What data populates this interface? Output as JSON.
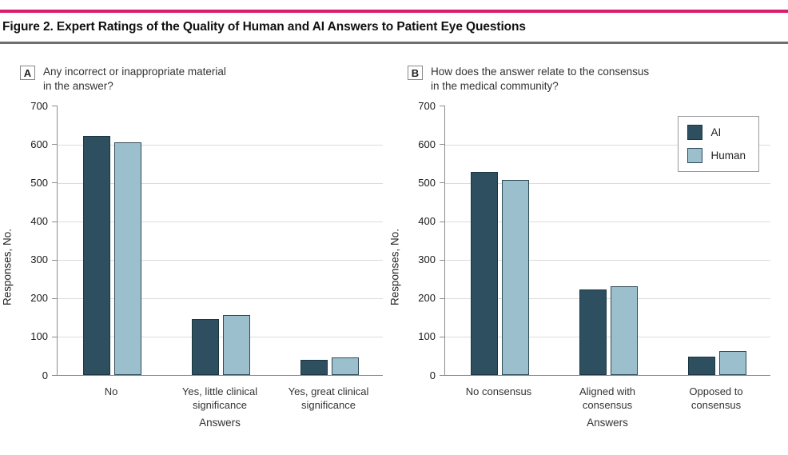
{
  "figure": {
    "title": "Figure 2. Expert Ratings of the Quality of Human and AI Answers to Patient Eye Questions",
    "accent_rule_color": "#d91c6b",
    "divider_rule_color": "#6f6f6f"
  },
  "legend": {
    "position": "panel-B-top-right",
    "items": [
      {
        "label": "AI",
        "color": "#2d4f5f",
        "border": "#1c3641"
      },
      {
        "label": "Human",
        "color": "#9cbfce",
        "border": "#2f4a57"
      }
    ]
  },
  "chart_data": [
    {
      "type": "bar",
      "panel": "A",
      "question_lines": [
        "Any incorrect or inappropriate material",
        "in the answer?"
      ],
      "categories": [
        [
          "No"
        ],
        [
          "Yes, little clinical",
          "significance"
        ],
        [
          "Yes, great clinical",
          "significance"
        ]
      ],
      "series": [
        {
          "name": "AI",
          "color": "#2d4f5f",
          "border": "#1c3641",
          "values": [
            620,
            145,
            38
          ]
        },
        {
          "name": "Human",
          "color": "#9cbfce",
          "border": "#2f4a57",
          "values": [
            603,
            155,
            44
          ]
        }
      ],
      "xlabel": "Answers",
      "ylabel": "Responses, No.",
      "ylim": [
        0,
        700
      ],
      "yticks": [
        0,
        100,
        200,
        300,
        400,
        500,
        600,
        700
      ],
      "grid": true,
      "legend": false
    },
    {
      "type": "bar",
      "panel": "B",
      "question_lines": [
        "How does the answer relate to the consensus",
        "in the medical community?"
      ],
      "categories": [
        [
          "No consensus"
        ],
        [
          "Aligned with",
          "consensus"
        ],
        [
          "Opposed to",
          "consensus"
        ]
      ],
      "series": [
        {
          "name": "AI",
          "color": "#2d4f5f",
          "border": "#1c3641",
          "values": [
            527,
            221,
            47
          ]
        },
        {
          "name": "Human",
          "color": "#9cbfce",
          "border": "#2f4a57",
          "values": [
            506,
            229,
            61
          ]
        }
      ],
      "xlabel": "Answers",
      "ylabel": "Responses, No.",
      "ylim": [
        0,
        700
      ],
      "yticks": [
        0,
        100,
        200,
        300,
        400,
        500,
        600,
        700
      ],
      "grid": true,
      "legend": true
    }
  ]
}
